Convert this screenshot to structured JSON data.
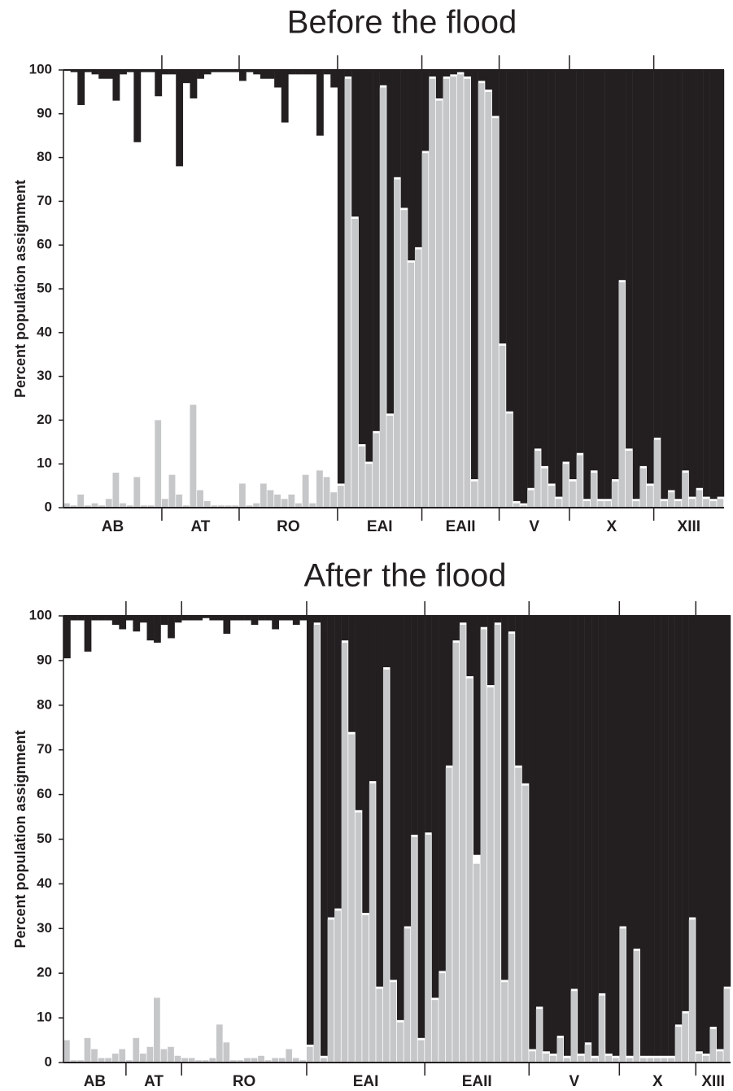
{
  "chart_data": [
    {
      "type": "structure",
      "title": "Before the flood",
      "y_label": "Percent population assignment",
      "ylim": [
        0,
        100
      ],
      "yticks": [
        0,
        10,
        20,
        30,
        40,
        50,
        60,
        70,
        80,
        90,
        100
      ],
      "groups": [
        {
          "name": "AB",
          "size": 14
        },
        {
          "name": "AT",
          "size": 11
        },
        {
          "name": "RO",
          "size": 14
        },
        {
          "name": "EAI",
          "size": 12
        },
        {
          "name": "EAII",
          "size": 11
        },
        {
          "name": "V",
          "size": 10
        },
        {
          "name": "X",
          "size": 12
        },
        {
          "name": "XIII",
          "size": 10
        }
      ],
      "series": [
        {
          "color": "#c6c7c9",
          "values": [
            1,
            0.5,
            3,
            0.5,
            1,
            0.5,
            2,
            8,
            1,
            0.5,
            7,
            0.5,
            0.5,
            20,
            2,
            7.5,
            3,
            0.5,
            23.5,
            4,
            1.5,
            0.5,
            0.5,
            0.5,
            0.5,
            5.5,
            0.5,
            1,
            5.5,
            4,
            3,
            2,
            3,
            1,
            7.5,
            1,
            8.5,
            7,
            3.5,
            5,
            98,
            66,
            14,
            10,
            17,
            96,
            21,
            75,
            68,
            56,
            59,
            81,
            98,
            93,
            98,
            98.5,
            99,
            98,
            6,
            97,
            95,
            89,
            37,
            21.5,
            1,
            0.5,
            4,
            13,
            9,
            5,
            2,
            10,
            6,
            12,
            1.5,
            8,
            1.5,
            1.5,
            6,
            51.5,
            13,
            1.5,
            9,
            5,
            15.5,
            1.5,
            3.5,
            1.5,
            8,
            2,
            4,
            2,
            1.5,
            2
          ]
        },
        {
          "color": "#231f20",
          "values": [
            0,
            0.5,
            8,
            0.5,
            1,
            2,
            2,
            7,
            1,
            0.5,
            16.5,
            0.5,
            0.5,
            6,
            1,
            1,
            22,
            3,
            6.5,
            2,
            1,
            0.5,
            0.5,
            0.5,
            0.5,
            2.5,
            0.5,
            1,
            2,
            2,
            4,
            12,
            1,
            1,
            1,
            1,
            15,
            1,
            4,
            94.5,
            1.5,
            33.5,
            85.5,
            89.5,
            82.5,
            3.5,
            78.5,
            24.5,
            31.5,
            43.5,
            40.5,
            18.5,
            1.5,
            6.5,
            1.5,
            1,
            0.5,
            1.5,
            93.5,
            2.5,
            4.5,
            10.5,
            62.5,
            78,
            98.5,
            99,
            95.5,
            86.5,
            90.5,
            94.5,
            97.5,
            89.5,
            93.5,
            87.5,
            98,
            91.5,
            98,
            98,
            93.5,
            48,
            86.5,
            98,
            90.5,
            94.5,
            84,
            98,
            96,
            98,
            91.5,
            97.5,
            95.5,
            97.5,
            98,
            97.5
          ]
        }
      ]
    },
    {
      "type": "structure",
      "title": "After the flood",
      "y_label": "Percent population assignment",
      "ylim": [
        0,
        100
      ],
      "yticks": [
        0,
        10,
        20,
        30,
        40,
        50,
        60,
        70,
        80,
        90,
        100
      ],
      "groups": [
        {
          "name": "AB",
          "size": 9
        },
        {
          "name": "AT",
          "size": 8
        },
        {
          "name": "RO",
          "size": 18
        },
        {
          "name": "EAI",
          "size": 17
        },
        {
          "name": "EAII",
          "size": 15
        },
        {
          "name": "V",
          "size": 13
        },
        {
          "name": "X",
          "size": 11
        },
        {
          "name": "XIII",
          "size": 5
        }
      ],
      "series": [
        {
          "color": "#c6c7c9",
          "values": [
            5,
            0.5,
            0.5,
            5.5,
            3,
            1,
            1,
            2,
            3,
            0.5,
            5.5,
            2,
            3.5,
            14.5,
            3,
            3.5,
            1.5,
            1,
            1,
            0.5,
            0.5,
            1,
            8.5,
            4.5,
            0.5,
            0.5,
            1,
            1,
            1.5,
            0.5,
            1,
            1,
            3,
            1,
            0.5,
            3.5,
            98,
            1,
            32,
            34,
            94,
            73.5,
            56,
            33,
            62.5,
            16.5,
            88,
            18,
            9,
            30,
            50.5,
            5,
            51,
            14,
            20,
            66,
            94,
            98,
            86,
            44.5,
            97,
            84,
            98,
            18,
            96,
            66,
            62,
            2.5,
            12,
            2,
            1.5,
            5.5,
            1,
            16,
            1.5,
            4,
            1,
            15,
            1.5,
            1,
            30,
            1,
            25,
            1,
            1,
            1,
            1,
            1,
            8,
            11,
            32,
            2,
            1.5,
            7.5,
            2.5,
            16.5
          ]
        },
        {
          "color": "#231f20",
          "values": [
            9.5,
            1,
            1,
            8,
            1,
            1,
            1,
            2,
            3,
            1,
            3.5,
            1.5,
            5.5,
            6,
            2,
            5,
            1.5,
            1,
            1,
            1,
            0.5,
            1,
            1,
            4,
            1,
            1,
            1,
            2,
            1,
            1,
            3,
            1,
            1,
            2,
            1,
            96,
            1.5,
            98.5,
            67.5,
            65.5,
            5.5,
            26,
            43.5,
            66.5,
            37,
            83,
            11.5,
            81.5,
            90.5,
            69.5,
            49,
            94.5,
            48.5,
            85.5,
            79.5,
            33.5,
            5.5,
            1.5,
            13.5,
            53.5,
            2.5,
            15.5,
            1.5,
            81.5,
            3.5,
            33.5,
            37.5,
            97,
            87.5,
            97.5,
            98,
            94,
            98.5,
            83.5,
            98,
            95.5,
            98.5,
            84.5,
            98,
            98.5,
            69.5,
            98.5,
            74.5,
            98.5,
            98.5,
            98.5,
            98.5,
            98.5,
            91.5,
            88.5,
            67.5,
            97.5,
            98,
            92,
            97,
            83
          ]
        }
      ]
    }
  ]
}
